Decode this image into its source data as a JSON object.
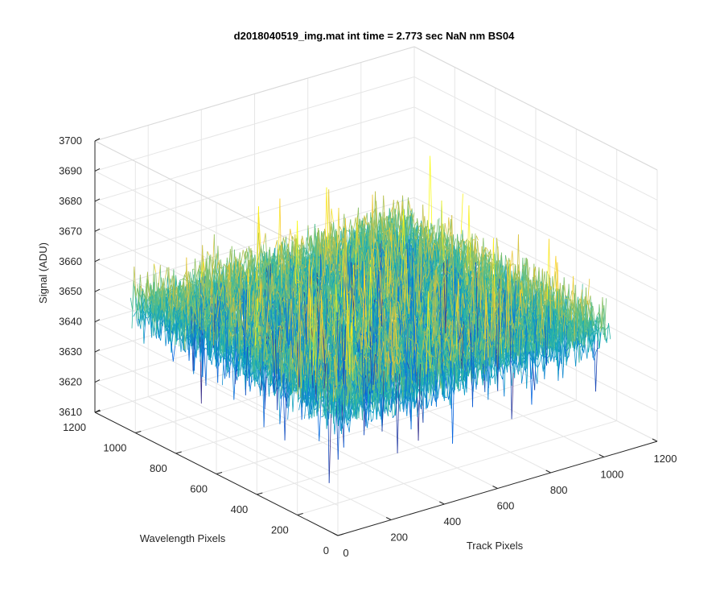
{
  "chart_data": {
    "type": "surface",
    "title": "d2018040519_img.mat int time = 2.773 sec  NaN nm BS04",
    "xlabel": "Track Pixels",
    "ylabel": "Wavelength Pixels",
    "zlabel": "Signal (ADU)",
    "xlim": [
      0,
      1200
    ],
    "ylim": [
      0,
      1200
    ],
    "zlim": [
      3610,
      3700
    ],
    "xticks": [
      "0",
      "200",
      "400",
      "600",
      "800",
      "1000",
      "1200"
    ],
    "yticks": [
      "0",
      "200",
      "400",
      "600",
      "800",
      "1000",
      "1200"
    ],
    "zticks": [
      "3610",
      "3620",
      "3630",
      "3640",
      "3650",
      "3660",
      "3670",
      "3680",
      "3690",
      "3700"
    ],
    "grid": true,
    "colormap": "parula",
    "colors": {
      "low": "#0072bd",
      "mid": "#1fb9b5",
      "high": "#edb120"
    },
    "signal_mean_approx": 3652,
    "signal_range_approx": [
      3615,
      3695
    ],
    "data_extent": {
      "track_pixels": [
        0,
        1024
      ],
      "wavelength_pixels": [
        0,
        1024
      ]
    }
  }
}
